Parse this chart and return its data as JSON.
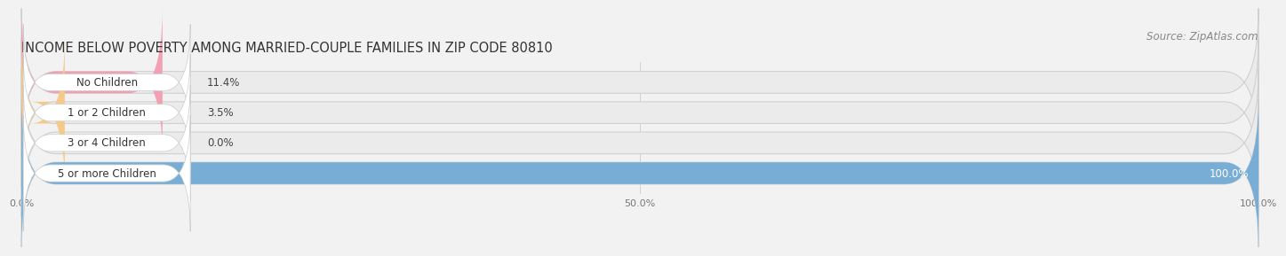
{
  "title": "INCOME BELOW POVERTY AMONG MARRIED-COUPLE FAMILIES IN ZIP CODE 80810",
  "source": "Source: ZipAtlas.com",
  "categories": [
    "No Children",
    "1 or 2 Children",
    "3 or 4 Children",
    "5 or more Children"
  ],
  "values": [
    11.4,
    3.5,
    0.0,
    100.0
  ],
  "bar_colors": [
    "#f2a0b3",
    "#f5c98a",
    "#f2a0b3",
    "#78aed6"
  ],
  "bar_bg_color": "#ebebeb",
  "xlim": [
    0,
    100
  ],
  "xticks": [
    0.0,
    50.0,
    100.0
  ],
  "xtick_labels": [
    "0.0%",
    "50.0%",
    "100.0%"
  ],
  "fig_bg_color": "#f2f2f2",
  "bar_height": 0.72,
  "title_fontsize": 10.5,
  "label_fontsize": 8.5,
  "value_fontsize": 8.5,
  "source_fontsize": 8.5
}
